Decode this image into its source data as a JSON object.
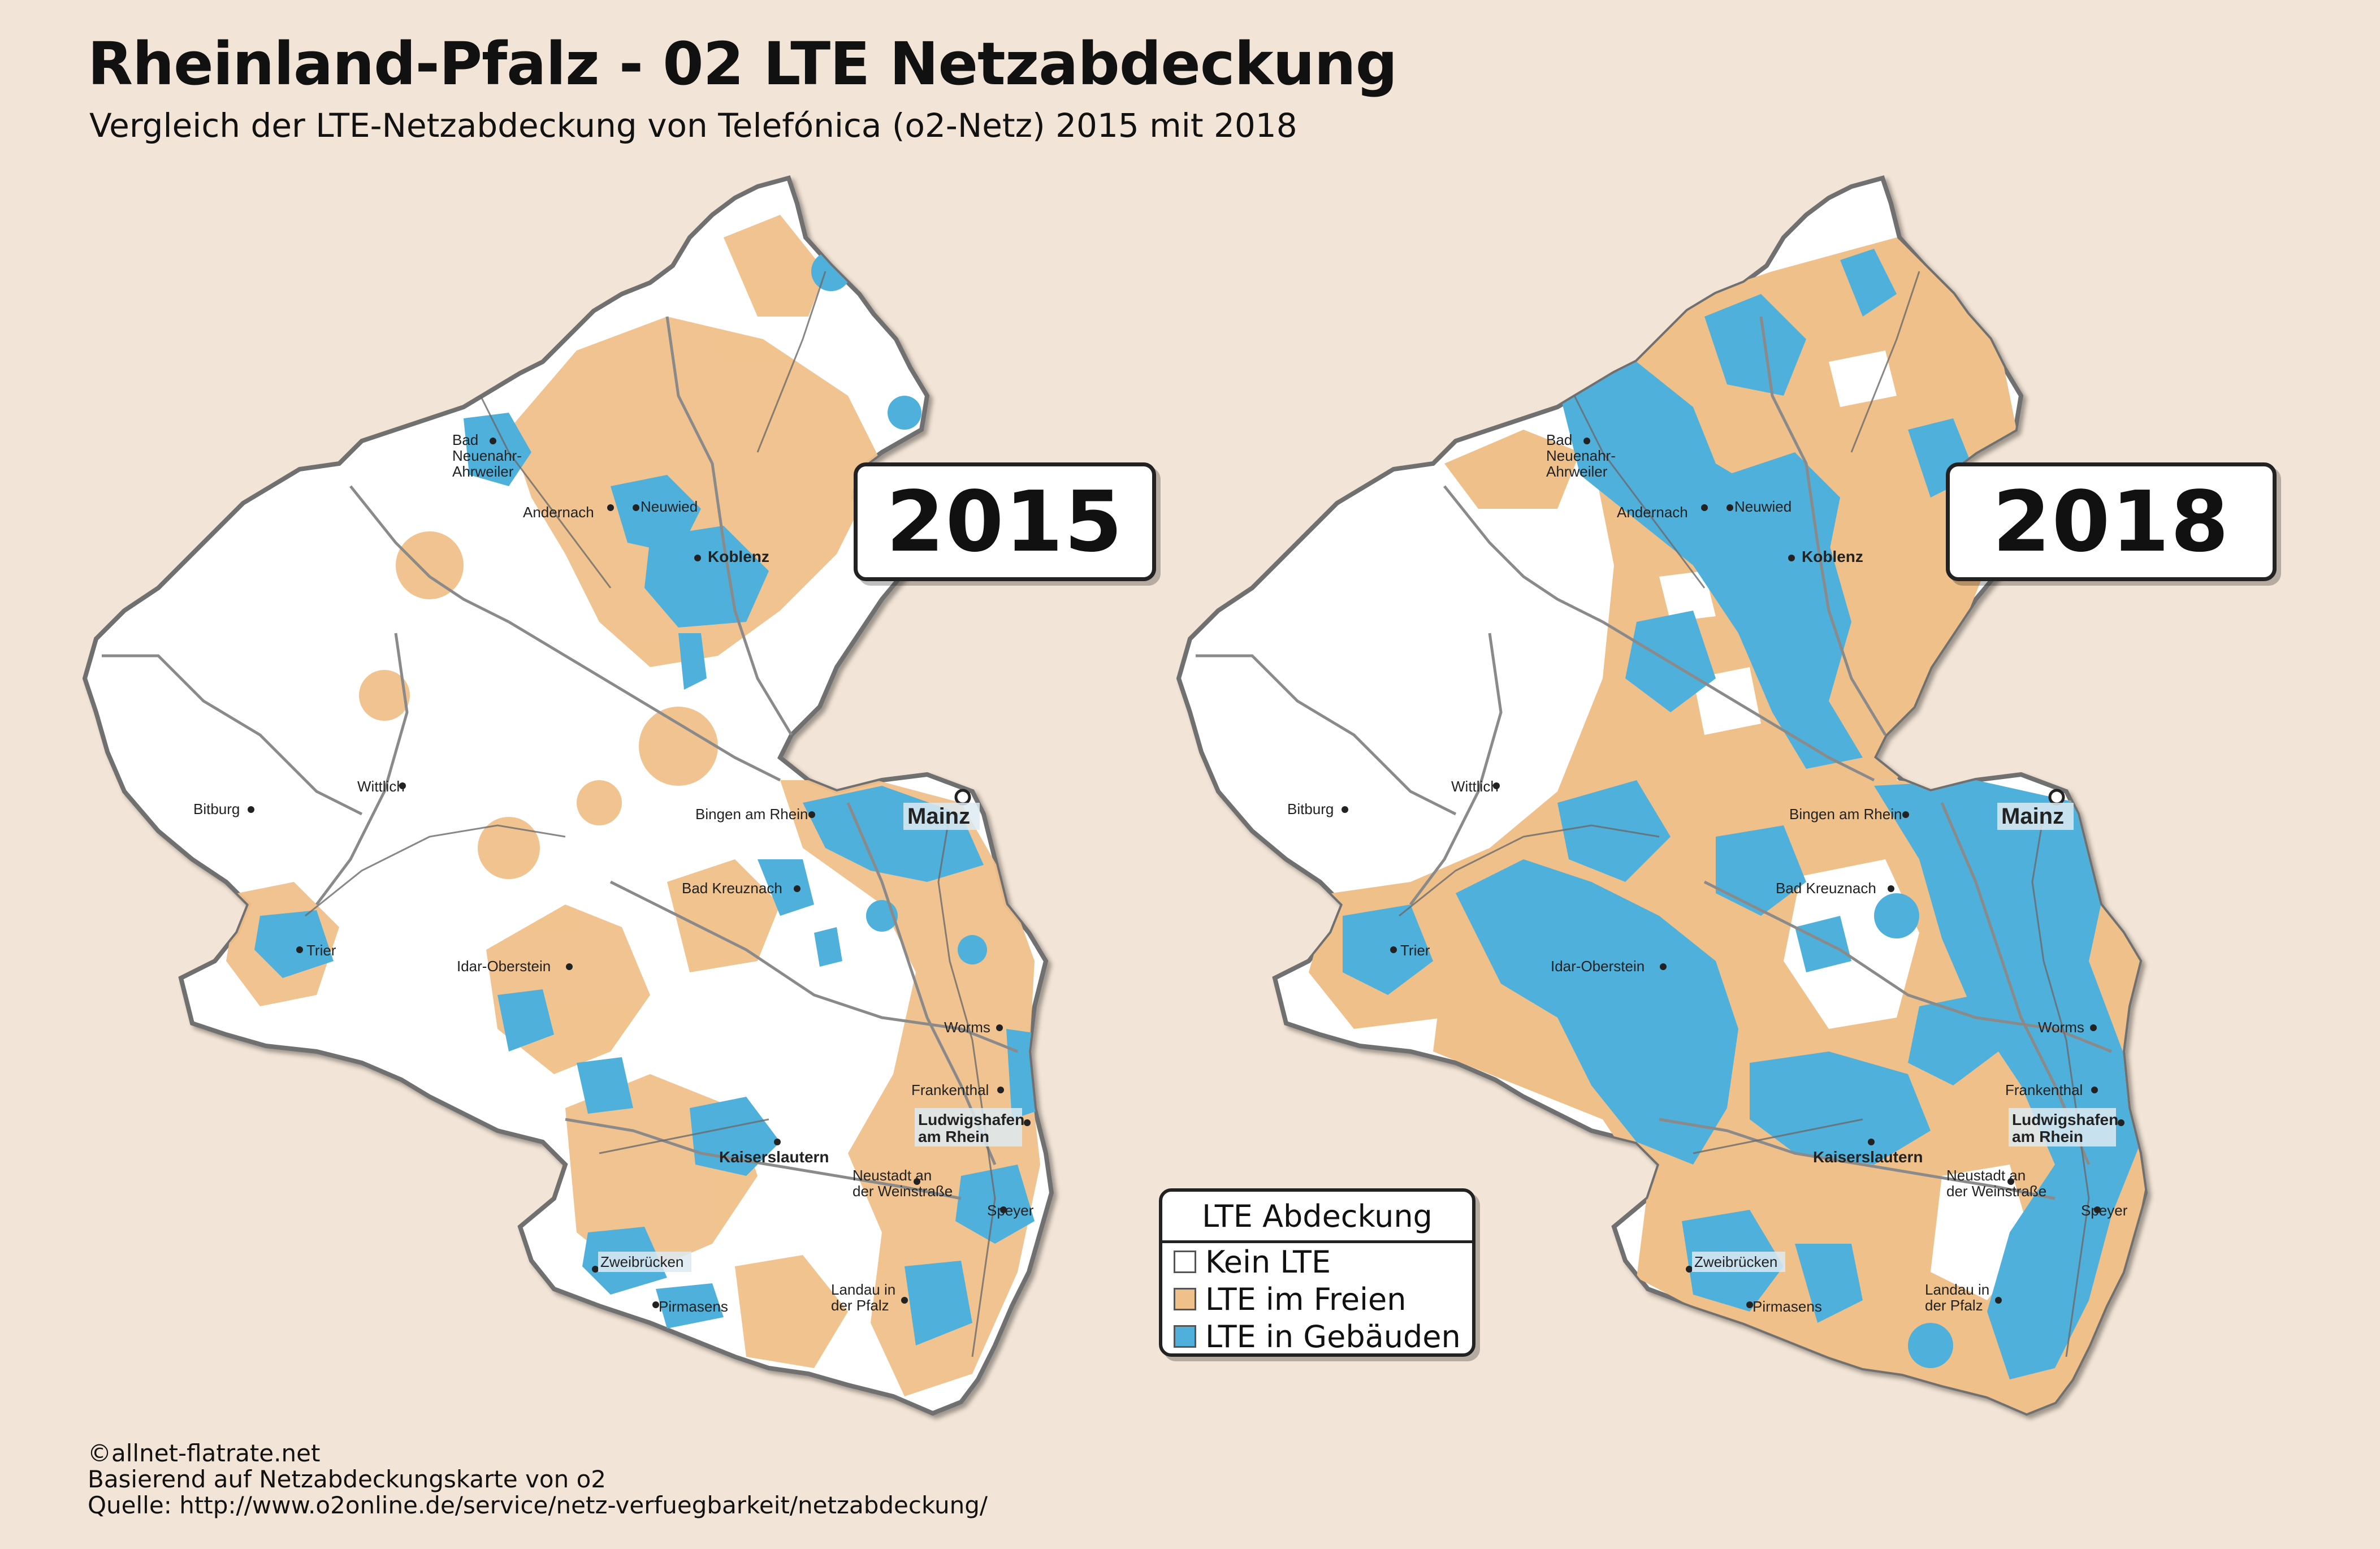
{
  "title": "Rheinland-Pfalz - 02 LTE Netzabdeckung",
  "subtitle": "Vergleich der LTE-Netzabdeckung von Telefónica (o2-Netz) 2015 mit 2018",
  "maps": [
    {
      "year": "2015",
      "coverage_level": "low"
    },
    {
      "year": "2018",
      "coverage_level": "high"
    }
  ],
  "cities": {
    "bad_neuenahr": "Bad Neuenahr-Ahrweiler",
    "bad_neuenahr_lines": [
      "Bad",
      "Neuenahr-",
      "Ahrweiler"
    ],
    "andernach": "Andernach",
    "neuwied": "Neuwied",
    "koblenz": "Koblenz",
    "bitburg": "Bitburg",
    "wittlich": "Wittlich",
    "bingen": "Bingen am Rhein",
    "mainz": "Mainz",
    "bad_kreuznach": "Bad Kreuznach",
    "trier": "Trier",
    "idar_oberstein": "Idar-Oberstein",
    "worms": "Worms",
    "frankenthal": "Frankenthal",
    "ludwigshafen_lines": [
      "Ludwigshafen",
      "am Rhein"
    ],
    "kaiserslautern": "Kaiserslautern",
    "neustadt_lines": [
      "Neustadt an",
      "der Weinstraße"
    ],
    "speyer": "Speyer",
    "zweibruecken": "Zweibrücken",
    "pirmasens": "Pirmasens",
    "landau_lines": [
      "Landau in",
      "der Pfalz"
    ]
  },
  "legend": {
    "title": "LTE Abdeckung",
    "items": [
      {
        "label": "Kein LTE",
        "color": "#ffffff"
      },
      {
        "label": "LTE im Freien",
        "color": "#f0c08a"
      },
      {
        "label": "LTE in Gebäuden",
        "color": "#4fb0dc"
      }
    ]
  },
  "colors": {
    "background": "#f2e4d6",
    "no_lte": "#ffffff",
    "lte_outdoor": "#f0c08a",
    "lte_indoor": "#4fb0dc",
    "border": "#7a7a7a"
  },
  "footer": {
    "copyright": "©allnet-flatrate.net",
    "basis": "Basierend auf Netzabdeckungskarte von o2",
    "source": "Quelle: http://www.o2online.de/service/netz-verfuegbarkeit/netzabdeckung/"
  }
}
